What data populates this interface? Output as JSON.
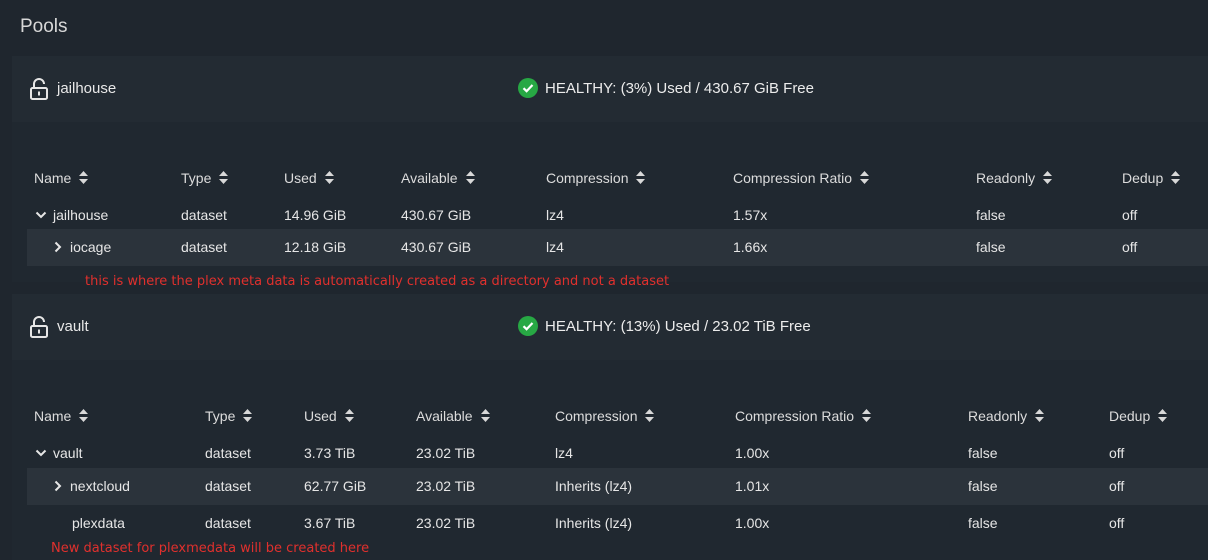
{
  "page": {
    "title": "Pools"
  },
  "columns": [
    "Name",
    "Type",
    "Used",
    "Available",
    "Compression",
    "Compression Ratio",
    "Readonly",
    "Dedup"
  ],
  "pools": [
    {
      "name": "jailhouse",
      "status": "HEALTHY: (3%) Used / 430.67 GiB Free",
      "rows": [
        {
          "name": "jailhouse",
          "expander": "expanded",
          "type": "dataset",
          "used": "14.96 GiB",
          "available": "430.67 GiB",
          "compression": "lz4",
          "ratio": "1.57x",
          "readonly": "false",
          "dedup": "off"
        },
        {
          "name": "iocage",
          "expander": "collapsed",
          "type": "dataset",
          "used": "12.18 GiB",
          "available": "430.67 GiB",
          "compression": "lz4",
          "ratio": "1.66x",
          "readonly": "false",
          "dedup": "off"
        }
      ],
      "annotation": "this is where the plex meta data is automatically created as a directory and not a dataset"
    },
    {
      "name": "vault",
      "status": "HEALTHY: (13%) Used / 23.02 TiB Free",
      "rows": [
        {
          "name": "vault",
          "expander": "expanded",
          "type": "dataset",
          "used": "3.73 TiB",
          "available": "23.02 TiB",
          "compression": "lz4",
          "ratio": "1.00x",
          "readonly": "false",
          "dedup": "off"
        },
        {
          "name": "nextcloud",
          "expander": "collapsed",
          "type": "dataset",
          "used": "62.77 GiB",
          "available": "23.02 TiB",
          "compression": "Inherits (lz4)",
          "ratio": "1.01x",
          "readonly": "false",
          "dedup": "off"
        },
        {
          "name": "plexdata",
          "expander": "none",
          "type": "dataset",
          "used": "3.67 TiB",
          "available": "23.02 TiB",
          "compression": "Inherits (lz4)",
          "ratio": "1.00x",
          "readonly": "false",
          "dedup": "off"
        }
      ],
      "annotation": "New dataset for plexmedata will be created here"
    }
  ],
  "icons": {
    "lock": "lock-open-icon",
    "status": "check-circle-icon",
    "sort": "sort-icon",
    "expanded": "chevron-down-icon",
    "collapsed": "chevron-right-icon"
  },
  "colors": {
    "background": "#1f262e",
    "header": "#232b33",
    "alt_row": "#2b333b",
    "healthy": "#27a844",
    "annotation": "#e0302d"
  }
}
